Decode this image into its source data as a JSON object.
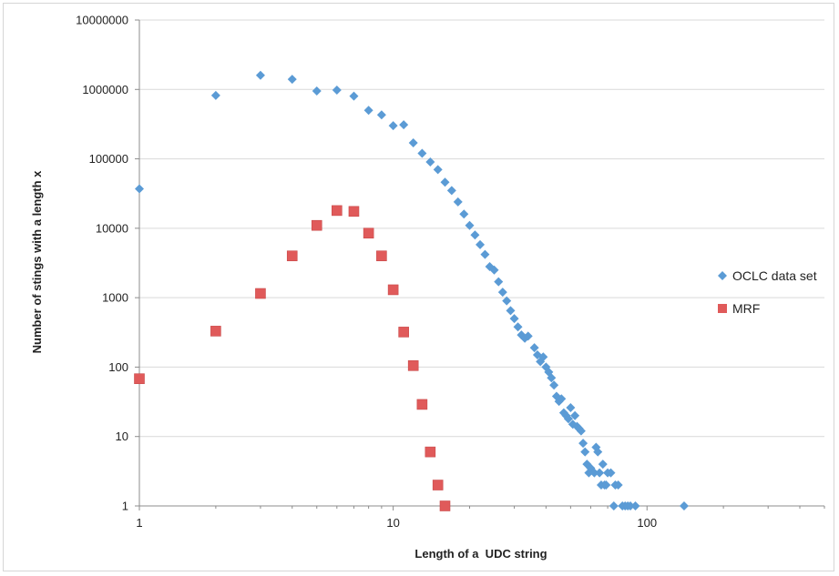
{
  "chart_data": {
    "type": "scatter",
    "xscale": "log",
    "yscale": "log",
    "xlim": [
      1,
      500
    ],
    "ylim": [
      1,
      10000000
    ],
    "xlabel": "Length of a  UDC string",
    "ylabel": "Number of stings with a length x",
    "x_ticks": [
      "1",
      "10",
      "100"
    ],
    "y_ticks": [
      "1",
      "10",
      "100",
      "1000",
      "10000",
      "100000",
      "1000000",
      "10000000"
    ],
    "grid": "horizontal",
    "legend_position": "right",
    "series": [
      {
        "name": "OCLC data set",
        "marker": "diamond",
        "color": "#5b9bd5",
        "points": [
          [
            1,
            37000
          ],
          [
            2,
            820000
          ],
          [
            3,
            1600000
          ],
          [
            4,
            1400000
          ],
          [
            5,
            950000
          ],
          [
            6,
            980000
          ],
          [
            7,
            800000
          ],
          [
            8,
            500000
          ],
          [
            9,
            430000
          ],
          [
            10,
            300000
          ],
          [
            11,
            310000
          ],
          [
            12,
            170000
          ],
          [
            13,
            120000
          ],
          [
            14,
            90000
          ],
          [
            15,
            70000
          ],
          [
            16,
            46000
          ],
          [
            17,
            35000
          ],
          [
            18,
            24000
          ],
          [
            19,
            16000
          ],
          [
            20,
            11000
          ],
          [
            21,
            8000
          ],
          [
            22,
            5800
          ],
          [
            23,
            4200
          ],
          [
            24,
            2800
          ],
          [
            25,
            2500
          ],
          [
            26,
            1700
          ],
          [
            27,
            1200
          ],
          [
            28,
            900
          ],
          [
            29,
            650
          ],
          [
            30,
            500
          ],
          [
            31,
            380
          ],
          [
            32,
            290
          ],
          [
            33,
            260
          ],
          [
            34,
            280
          ],
          [
            36,
            190
          ],
          [
            37,
            150
          ],
          [
            38,
            120
          ],
          [
            39,
            140
          ],
          [
            40,
            100
          ],
          [
            41,
            85
          ],
          [
            42,
            70
          ],
          [
            43,
            55
          ],
          [
            44,
            38
          ],
          [
            45,
            32
          ],
          [
            46,
            35
          ],
          [
            47,
            22
          ],
          [
            48,
            20
          ],
          [
            49,
            18
          ],
          [
            50,
            26
          ],
          [
            51,
            15
          ],
          [
            52,
            20
          ],
          [
            53,
            14
          ],
          [
            54,
            13
          ],
          [
            55,
            12
          ],
          [
            56,
            8
          ],
          [
            57,
            6
          ],
          [
            58,
            4
          ],
          [
            59,
            3
          ],
          [
            60,
            3.5
          ],
          [
            62,
            3
          ],
          [
            63,
            7
          ],
          [
            64,
            6
          ],
          [
            65,
            3
          ],
          [
            66,
            2
          ],
          [
            67,
            4
          ],
          [
            68,
            2
          ],
          [
            69,
            2
          ],
          [
            70,
            3
          ],
          [
            72,
            3
          ],
          [
            74,
            1
          ],
          [
            75,
            2
          ],
          [
            77,
            2
          ],
          [
            80,
            1
          ],
          [
            82,
            1
          ],
          [
            84,
            1
          ],
          [
            86,
            1
          ],
          [
            90,
            1
          ],
          [
            140,
            1
          ]
        ]
      },
      {
        "name": "MRF",
        "marker": "square",
        "color": "#e05a5a",
        "points": [
          [
            1,
            68
          ],
          [
            2,
            330
          ],
          [
            3,
            1150
          ],
          [
            4,
            4000
          ],
          [
            5,
            11000
          ],
          [
            6,
            18000
          ],
          [
            7,
            17500
          ],
          [
            8,
            8500
          ],
          [
            9,
            4000
          ],
          [
            10,
            1300
          ],
          [
            11,
            320
          ],
          [
            12,
            105
          ],
          [
            13,
            29
          ],
          [
            14,
            6
          ],
          [
            15,
            2
          ],
          [
            16,
            1
          ]
        ]
      }
    ]
  }
}
